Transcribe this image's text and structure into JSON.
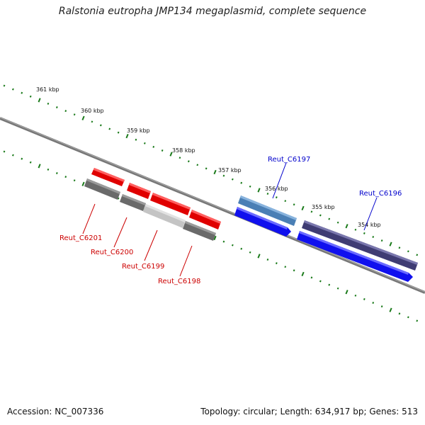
{
  "title": "Ralstonia eutropha JMP134 megaplasmid, complete sequence",
  "footer": {
    "accession": "Accession: NC_007336",
    "topology": "Topology: circular; Length: 634,917 bp; Genes: 513"
  },
  "colors": {
    "backbone": "#808080",
    "tick": "#1a7a1a",
    "minus_label": "#cc0000",
    "plus_label": "#0000cc",
    "red_gene": "#ff0000",
    "gray_gene": "#6e6e6e",
    "lightgray_gene": "#c8c8c8",
    "blue_gene": "#1010ff",
    "steel_gene": "#4f87bd",
    "purple_gene": "#45427a"
  },
  "kbp_labels": [
    "361 kbp",
    "360 kbp",
    "359 kbp",
    "358 kbp",
    "357 kbp",
    "356 kbp",
    "355 kbp",
    "354 kbp"
  ],
  "gene_labels": [
    {
      "text": "Reut_C6201",
      "strand": "minus"
    },
    {
      "text": "Reut_C6200",
      "strand": "minus"
    },
    {
      "text": "Reut_C6199",
      "strand": "minus"
    },
    {
      "text": "Reut_C6198",
      "strand": "minus"
    },
    {
      "text": "Reut_C6197",
      "strand": "plus"
    },
    {
      "text": "Reut_C6196",
      "strand": "plus"
    }
  ]
}
